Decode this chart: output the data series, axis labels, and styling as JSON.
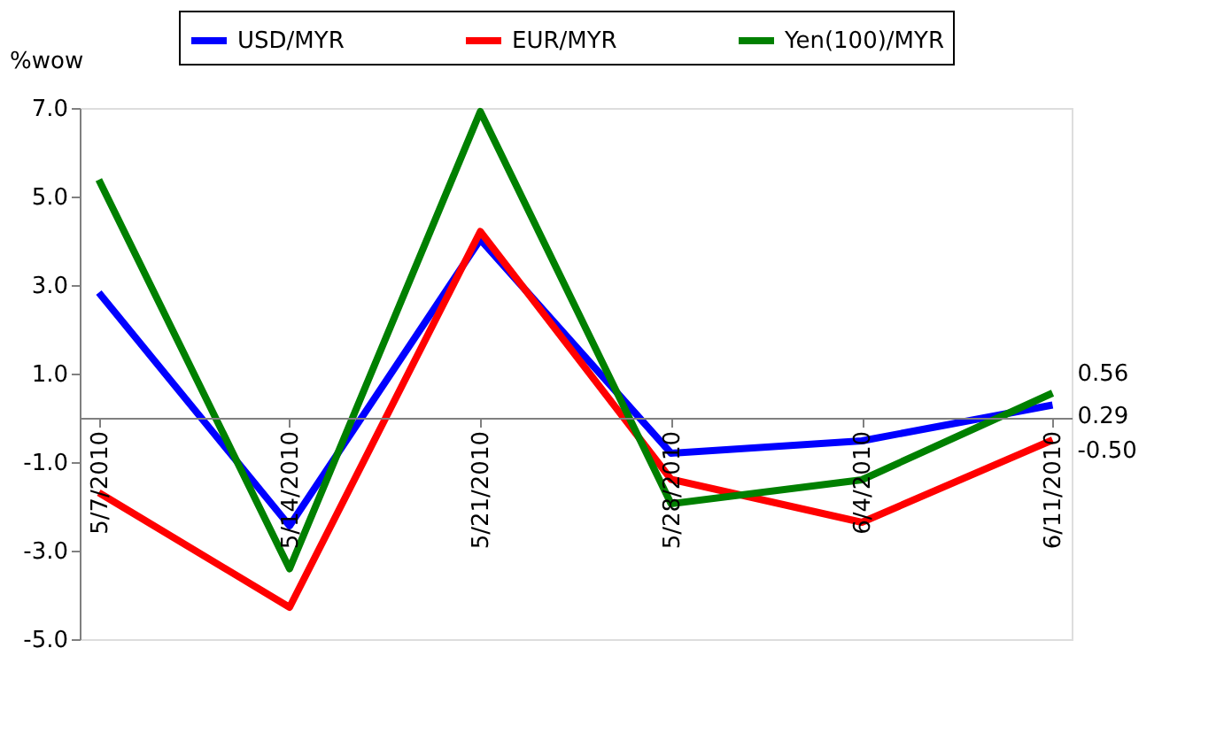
{
  "chart_data": {
    "type": "line",
    "ylabel": "%wow",
    "categories": [
      "5/7/2010",
      "5/14/2010",
      "5/21/2010",
      "5/28/2010",
      "6/4/2010",
      "6/11/2010"
    ],
    "series": [
      {
        "name": "USD/MYR",
        "color": "#0000ff",
        "values": [
          2.83,
          -2.44,
          4.03,
          -0.8,
          -0.52,
          0.29
        ],
        "value_labels": [
          null,
          null,
          null,
          null,
          null,
          "0.29"
        ]
      },
      {
        "name": "EUR/MYR",
        "color": "#ff0000",
        "values": [
          -1.69,
          -4.28,
          4.21,
          -1.39,
          -2.36,
          -0.5
        ],
        "value_labels": [
          null,
          null,
          null,
          null,
          null,
          "-0.50"
        ]
      },
      {
        "name": "Yen(100)/MYR",
        "color": "#008000",
        "values": [
          5.38,
          -3.41,
          6.92,
          -1.94,
          -1.4,
          0.56
        ],
        "value_labels": [
          null,
          null,
          null,
          null,
          null,
          "0.56"
        ]
      }
    ],
    "ylim": [
      -5,
      7
    ],
    "yticks": [
      {
        "value": -5,
        "label": "-5.0"
      },
      {
        "value": -3,
        "label": "-3.0"
      },
      {
        "value": -1,
        "label": "-1.0"
      },
      {
        "value": 1,
        "label": "1.0"
      },
      {
        "value": 3,
        "label": "3.0"
      },
      {
        "value": 5,
        "label": "5.0"
      },
      {
        "value": 7,
        "label": "7.0"
      }
    ],
    "grid": false,
    "legend": "top",
    "marker": "none",
    "line_style": "solid"
  }
}
